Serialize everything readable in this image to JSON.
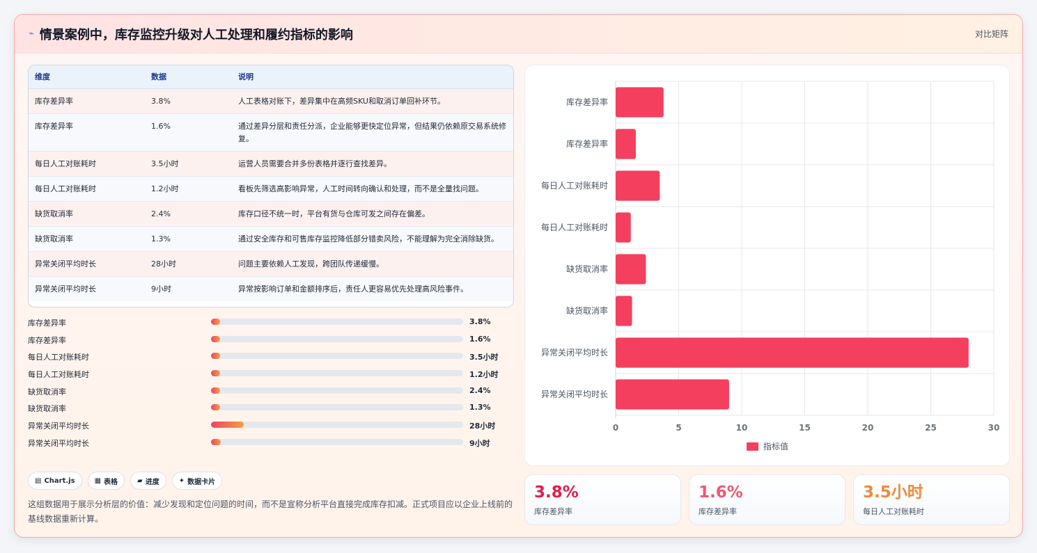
{
  "header": {
    "icon": "lightning-icon",
    "title": "情景案例中，库存监控升级对人工处理和履约指标的影响",
    "tag": "对比矩阵"
  },
  "table": {
    "headers": [
      "维度",
      "数据",
      "说明"
    ],
    "rows": [
      [
        "库存差异率",
        "3.8%",
        "人工表格对账下，差异集中在高频SKU和取消订单回补环节。"
      ],
      [
        "库存差异率",
        "1.6%",
        "通过差异分层和责任分派，企业能够更快定位异常，但结果仍依赖原交易系统修复。"
      ],
      [
        "每日人工对账耗时",
        "3.5小时",
        "运营人员需要合并多份表格并逐行查找差异。"
      ],
      [
        "每日人工对账耗时",
        "1.2小时",
        "看板先筛选高影响异常，人工时间转向确认和处理，而不是全量找问题。"
      ],
      [
        "缺货取消率",
        "2.4%",
        "库存口径不统一时，平台有货与仓库可发之间存在偏差。"
      ],
      [
        "缺货取消率",
        "1.3%",
        "通过安全库存和可售库存监控降低部分错卖风险，不能理解为完全消除缺货。"
      ],
      [
        "异常关闭平均时长",
        "28小时",
        "问题主要依赖人工发现，跨团队传递缓慢。"
      ],
      [
        "异常关闭平均时长",
        "9小时",
        "异常按影响订单和金额排序后，责任人更容易优先处理高风险事件。"
      ]
    ]
  },
  "progress": [
    {
      "label": "库存差异率",
      "value_text": "3.8%",
      "fraction": 0.035
    },
    {
      "label": "库存差异率",
      "value_text": "1.6%",
      "fraction": 0.035
    },
    {
      "label": "每日人工对账耗时",
      "value_text": "3.5小时",
      "fraction": 0.035
    },
    {
      "label": "每日人工对账耗时",
      "value_text": "1.2小时",
      "fraction": 0.035
    },
    {
      "label": "缺货取消率",
      "value_text": "2.4%",
      "fraction": 0.035
    },
    {
      "label": "缺货取消率",
      "value_text": "1.3%",
      "fraction": 0.035
    },
    {
      "label": "异常关闭平均时长",
      "value_text": "28小时",
      "fraction": 0.13
    },
    {
      "label": "异常关闭平均时长",
      "value_text": "9小时",
      "fraction": 0.04
    }
  ],
  "chips": [
    {
      "icon": "chart-icon",
      "glyph": "▤",
      "label": "Chart.js"
    },
    {
      "icon": "table-icon",
      "glyph": "▦",
      "label": "表格"
    },
    {
      "icon": "progress-icon",
      "glyph": "▰",
      "label": "进度"
    },
    {
      "icon": "sparkle-icon",
      "glyph": "✦",
      "label": "数据卡片"
    }
  ],
  "note": "这组数据用于展示分析层的价值：减少发现和定位问题的时间，而不是宣称分析平台直接完成库存扣减。正式项目应以企业上线前的基线数据重新计算。",
  "chart_data": {
    "type": "bar",
    "orientation": "horizontal",
    "categories": [
      "库存差异率",
      "库存差异率",
      "每日人工对账耗时",
      "每日人工对账耗时",
      "缺货取消率",
      "缺货取消率",
      "异常关闭平均时长",
      "异常关闭平均时长"
    ],
    "series": [
      {
        "name": "指标值",
        "values": [
          3.8,
          1.6,
          3.5,
          1.2,
          2.4,
          1.3,
          28,
          9
        ]
      }
    ],
    "xlim": [
      0,
      30
    ],
    "xticks": [
      0,
      5,
      10,
      15,
      20,
      25,
      30
    ],
    "grid": true,
    "legend": "bottom",
    "color": "#f43f5e"
  },
  "stats": [
    {
      "value": "3.8%",
      "label": "库存差异率",
      "color": "#e11d48"
    },
    {
      "value": "1.6%",
      "label": "库存差异率",
      "color": "#f05773"
    },
    {
      "value": "3.5小时",
      "label": "每日人工对账耗时",
      "color": "#f08a3a"
    }
  ]
}
